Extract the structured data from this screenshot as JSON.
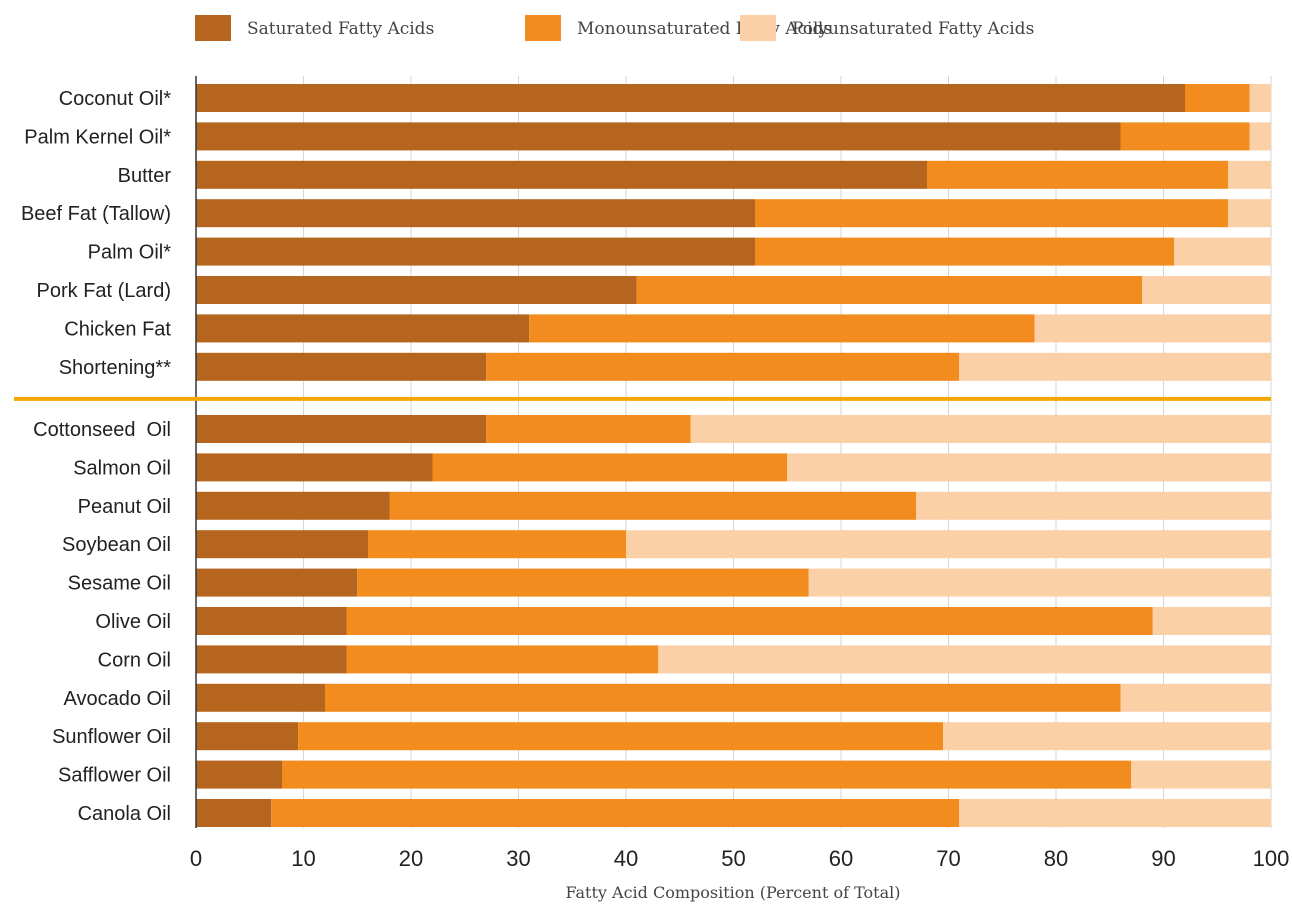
{
  "chart_data": {
    "type": "bar",
    "orientation": "horizontal",
    "stacked": true,
    "xlabel": "Fatty Acid Composition (Percent of Total)",
    "xlim": [
      0,
      100
    ],
    "x_ticks": [
      "0",
      "10",
      "20",
      "30",
      "40",
      "50",
      "60",
      "70",
      "80",
      "90",
      "100"
    ],
    "grid": "vertical",
    "legend_position": "top",
    "categories": [
      "Coconut Oil*",
      "Palm Kernel Oil*",
      "Butter",
      "Beef Fat (Tallow)",
      "Palm Oil*",
      "Pork Fat (Lard)",
      "Chicken Fat",
      "Shortening**",
      "Cottonseed  Oil",
      "Salmon Oil",
      "Peanut Oil",
      "Soybean Oil",
      "Sesame Oil",
      "Olive Oil",
      "Corn Oil",
      "Avocado Oil",
      "Sunflower Oil",
      "Safflower Oil",
      "Canola Oil"
    ],
    "group_divider_after_index": 7,
    "series": [
      {
        "name": "Saturated Fatty Acids",
        "color": "#b5651d",
        "values": [
          92,
          86,
          68,
          52,
          52,
          41,
          31,
          27,
          27,
          22,
          18,
          16,
          15,
          14,
          14,
          12,
          9.5,
          8,
          7
        ]
      },
      {
        "name": "Monounsaturated Fatty Acids",
        "color": "#f28c1e",
        "values": [
          6,
          12,
          28,
          44,
          39,
          47,
          47,
          44,
          19,
          33,
          49,
          24,
          42,
          75,
          29,
          74,
          60,
          79,
          64
        ]
      },
      {
        "name": "Polyunsaturated Fatty Acids",
        "color": "#fbd0a6",
        "values": [
          2,
          2,
          4,
          4,
          9,
          12,
          22,
          29,
          54,
          45,
          33,
          60,
          43,
          11,
          57,
          14,
          30.5,
          13,
          29
        ]
      }
    ],
    "divider_color": "#f5a800"
  }
}
